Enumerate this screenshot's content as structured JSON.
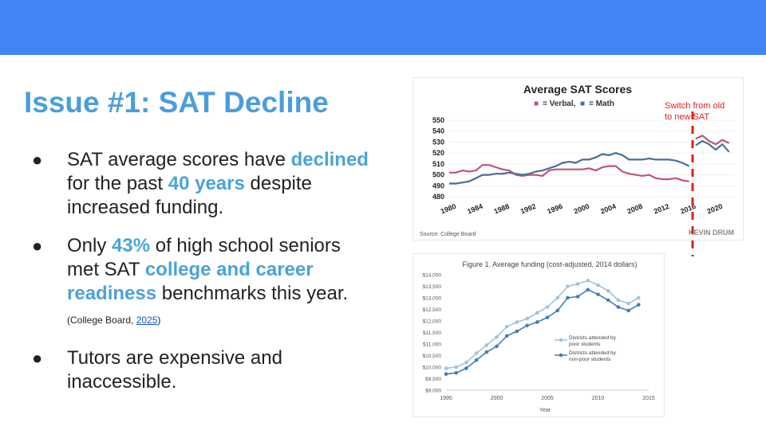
{
  "slide": {
    "title": "Issue #1: SAT Decline",
    "bullets": [
      {
        "pre": "SAT average scores have ",
        "hl1": "declined",
        "mid": " for the past ",
        "hl2": "40 years",
        "post": " despite increased funding."
      },
      {
        "pre": "Only ",
        "hl1": "43%",
        "mid": " of high school seniors met SAT ",
        "hl2": "college and career readiness",
        "post": " benchmarks this year. ",
        "cite_pre": "(College Board, ",
        "cite_link": "2025",
        "cite_post": ")"
      },
      {
        "text": "Tutors are expensive and inaccessible."
      }
    ],
    "bullet_glyph": "●",
    "annotation_line1": "Switch from old",
    "annotation_line2": "to new SAT"
  },
  "colors": {
    "topbar": "#4285f4",
    "title": "#4a9edb",
    "highlight": "#4aa3d9",
    "verbal": "#c2527a",
    "math": "#4a6f96",
    "poor": "#9ec3e0",
    "nonpoor": "#3f7fb8",
    "annotation": "#e02020"
  },
  "chart_data": [
    {
      "type": "line",
      "title": "Average SAT Scores",
      "legend": [
        {
          "marker": "■",
          "label": "= Verbal,",
          "color": "#c2527a"
        },
        {
          "marker": "■",
          "label": "= Math",
          "color": "#4a6f96"
        }
      ],
      "source": "Source: College Board",
      "watermark": "KEVIN DRUM",
      "ylim": [
        480,
        550
      ],
      "yticks": [
        480,
        490,
        500,
        510,
        520,
        530,
        540,
        550
      ],
      "xlim": [
        1980,
        2023
      ],
      "xticks": [
        1980,
        1984,
        1988,
        1992,
        1996,
        2000,
        2004,
        2008,
        2012,
        2016,
        2020
      ],
      "switch_year": 2016.5,
      "series": [
        {
          "name": "Verbal",
          "color": "#c2527a",
          "x": [
            1980,
            1981,
            1982,
            1983,
            1984,
            1985,
            1986,
            1987,
            1988,
            1989,
            1990,
            1991,
            1992,
            1993,
            1994,
            1995,
            1996,
            1997,
            1998,
            1999,
            2000,
            2001,
            2002,
            2003,
            2004,
            2005,
            2006,
            2007,
            2008,
            2009,
            2010,
            2011,
            2012,
            2013,
            2014,
            2015,
            2016,
            2017,
            2018,
            2019,
            2020,
            2021,
            2022
          ],
          "y": [
            502,
            502,
            504,
            503,
            504,
            509,
            509,
            507,
            505,
            504,
            500,
            499,
            500,
            500,
            499,
            504,
            505,
            505,
            505,
            505,
            505,
            506,
            504,
            507,
            508,
            508,
            503,
            501,
            500,
            499,
            500,
            497,
            496,
            496,
            497,
            495,
            494,
            533,
            536,
            531,
            528,
            532,
            529
          ]
        },
        {
          "name": "Math",
          "color": "#4a6f96",
          "x": [
            1980,
            1981,
            1982,
            1983,
            1984,
            1985,
            1986,
            1987,
            1988,
            1989,
            1990,
            1991,
            1992,
            1993,
            1994,
            1995,
            1996,
            1997,
            1998,
            1999,
            2000,
            2001,
            2002,
            2003,
            2004,
            2005,
            2006,
            2007,
            2008,
            2009,
            2010,
            2011,
            2012,
            2013,
            2014,
            2015,
            2016,
            2017,
            2018,
            2019,
            2020,
            2021,
            2022
          ],
          "y": [
            492,
            492,
            493,
            494,
            497,
            500,
            500,
            501,
            501,
            502,
            501,
            500,
            501,
            503,
            504,
            506,
            508,
            511,
            512,
            511,
            514,
            514,
            516,
            519,
            518,
            520,
            518,
            514,
            514,
            514,
            515,
            514,
            514,
            514,
            513,
            511,
            508,
            527,
            531,
            528,
            523,
            528,
            521
          ]
        }
      ]
    },
    {
      "type": "line",
      "title": "Figure 1. Average funding (cost-adjusted, 2014 dollars)",
      "xlabel": "Year",
      "ylim": [
        9000,
        14000
      ],
      "yticks": [
        9000,
        9500,
        10000,
        10500,
        11000,
        11500,
        12000,
        12500,
        13000,
        13500,
        14000
      ],
      "ytick_labels": [
        "$9,000",
        "$9,500",
        "$10,000",
        "$10,500",
        "$11,000",
        "$11,500",
        "$12,000",
        "$12,500",
        "$13,000",
        "$13,500",
        "$14,000"
      ],
      "xlim": [
        1995,
        2015
      ],
      "xticks": [
        1995,
        2000,
        2005,
        2010,
        2015
      ],
      "series": [
        {
          "name": "Districts attended by poor students",
          "name_line1": "Districts attended by",
          "name_line2": "poor students",
          "color": "#9ec3e0",
          "x": [
            1995,
            1996,
            1997,
            1998,
            1999,
            2000,
            2001,
            2002,
            2003,
            2004,
            2005,
            2006,
            2007,
            2008,
            2009,
            2010,
            2011,
            2012,
            2013,
            2014
          ],
          "y": [
            9950,
            10000,
            10200,
            10600,
            10950,
            11300,
            11750,
            11950,
            12100,
            12350,
            12600,
            13000,
            13500,
            13600,
            13750,
            13550,
            13300,
            12900,
            12750,
            13000
          ]
        },
        {
          "name": "Districts attended by non-poor students",
          "name_line1": "Districts attended by",
          "name_line2": "non-poor students",
          "color": "#3f7fb8",
          "x": [
            1995,
            1996,
            1997,
            1998,
            1999,
            2000,
            2001,
            2002,
            2003,
            2004,
            2005,
            2006,
            2007,
            2008,
            2009,
            2010,
            2011,
            2012,
            2013,
            2014
          ],
          "y": [
            9700,
            9750,
            9950,
            10300,
            10650,
            10900,
            11350,
            11550,
            11800,
            11950,
            12150,
            12450,
            13000,
            13050,
            13350,
            13150,
            12900,
            12600,
            12450,
            12700
          ]
        }
      ]
    }
  ]
}
